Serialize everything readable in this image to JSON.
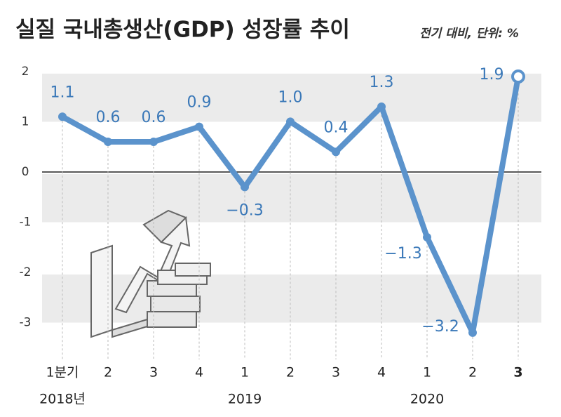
{
  "chart_data": {
    "type": "line",
    "title": "실질 국내총생산(GDP) 성장률 추이",
    "subtitle": "전기 대비, 단위: %",
    "categories": [
      "1분기",
      "2",
      "3",
      "4",
      "1",
      "2",
      "3",
      "4",
      "1",
      "2",
      "3"
    ],
    "years": [
      {
        "label": "2018년",
        "index": 0
      },
      {
        "label": "2019",
        "index": 4
      },
      {
        "label": "2020",
        "index": 8
      }
    ],
    "series": [
      {
        "name": "성장률",
        "color": "#5b93cc",
        "values": [
          1.1,
          0.6,
          0.6,
          0.9,
          -0.3,
          1.0,
          0.4,
          1.3,
          -1.3,
          -3.2,
          1.9
        ],
        "value_labels": [
          "1.1",
          "0.6",
          "0.6",
          "0.9",
          "−0.3",
          "1.0",
          "0.4",
          "1.3",
          "−1.3",
          "−3.2",
          "1.9"
        ]
      }
    ],
    "ylim": [
      -3.3,
      2.25
    ],
    "yticks": [
      2,
      1,
      0,
      -1,
      -2,
      -3
    ],
    "grid": "bands",
    "highlight_last": true
  }
}
